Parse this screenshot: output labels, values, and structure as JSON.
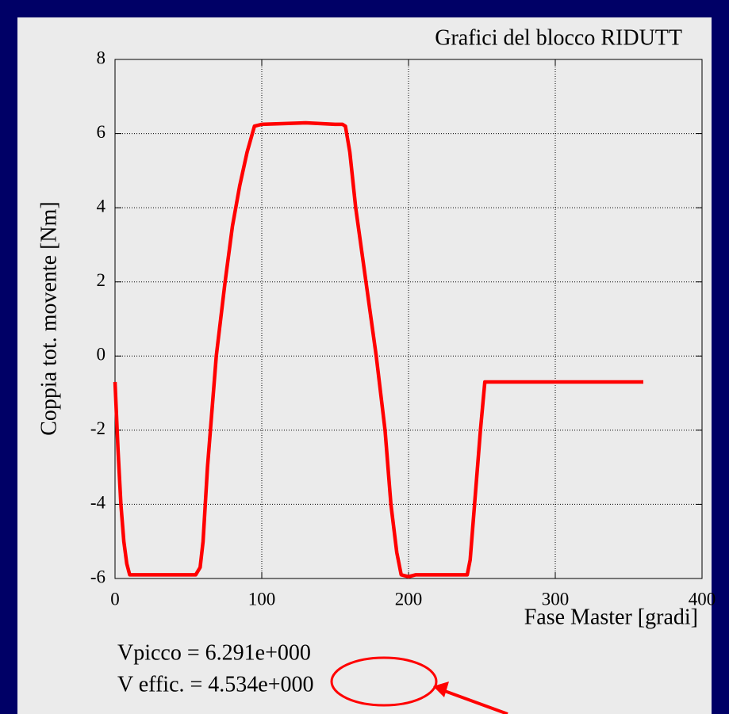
{
  "chart_data": {
    "type": "line",
    "title": "Grafici del blocco RIDUTT",
    "x_label": "Fase Master [gradi]",
    "y_label": "Coppia tot. movente [Nm]",
    "annotations": [
      "Vpicco = 6.291e+000",
      "V effic. = 4.534e+000"
    ],
    "xlim": [
      0,
      400
    ],
    "xticks": [
      0,
      100,
      200,
      300,
      400
    ],
    "ylim": [
      -6,
      8
    ],
    "yticks": [
      -6,
      -4,
      -2,
      0,
      2,
      4,
      6,
      8
    ],
    "grid": true,
    "series": [
      {
        "color": "#ff0000",
        "x": [
          0,
          2,
          4,
          6,
          8,
          10,
          30,
          55,
          58,
          60,
          63,
          66,
          69,
          75,
          80,
          85,
          90,
          95,
          100,
          130,
          150,
          155,
          157,
          160,
          164,
          171,
          178,
          184,
          188,
          192,
          195,
          200,
          205,
          225,
          240,
          242,
          245,
          249,
          252,
          360
        ],
        "values": [
          -0.7,
          -2.5,
          -4,
          -5,
          -5.6,
          -5.9,
          -5.9,
          -5.9,
          -5.7,
          -5,
          -3,
          -1.5,
          0,
          2,
          3.5,
          4.6,
          5.5,
          6.2,
          6.25,
          6.29,
          6.25,
          6.25,
          6.2,
          5.5,
          4,
          2,
          0,
          -2,
          -4,
          -5.3,
          -5.9,
          -5.95,
          -5.9,
          -5.9,
          -5.9,
          -5.5,
          -4,
          -2,
          -0.7,
          -0.7
        ]
      }
    ]
  }
}
